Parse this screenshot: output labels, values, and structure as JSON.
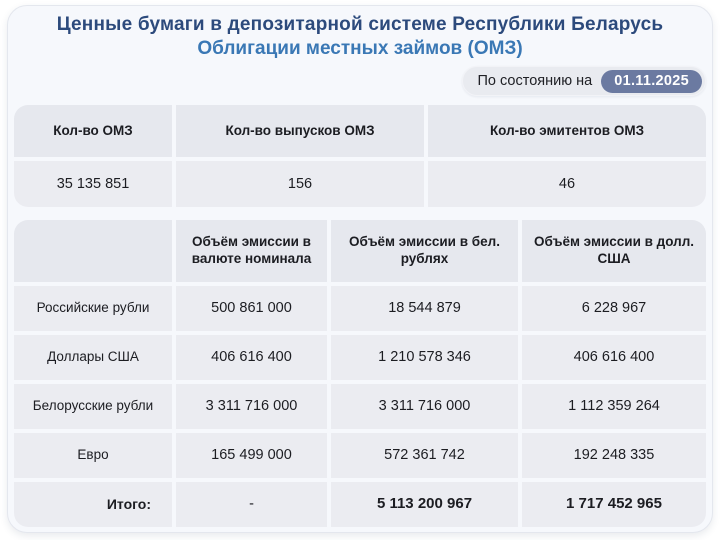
{
  "header": {
    "title": "Ценные бумаги в депозитарной системе Республики Беларусь",
    "subtitle": "Облигации местных займов (ОМЗ)",
    "as_of_label": "По состоянию на",
    "as_of_date": "01.11.2025"
  },
  "summary_table": {
    "columns": [
      "Кол-во ОМЗ",
      "Кол-во выпусков ОМЗ",
      "Кол-во эмитентов ОМЗ"
    ],
    "values": [
      "35 135 851",
      "156",
      "46"
    ]
  },
  "emission_table": {
    "columns": [
      "Объём эмиссии в валюте номинала",
      "Объём эмиссии в бел. рублях",
      "Объём эмиссии в долл. США"
    ],
    "rows": [
      {
        "label": "Российские рубли",
        "values": [
          "500 861 000",
          "18 544 879",
          "6 228 967"
        ]
      },
      {
        "label": "Доллары США",
        "values": [
          "406 616 400",
          "1 210 578 346",
          "406 616 400"
        ]
      },
      {
        "label": "Белорусские рубли",
        "values": [
          "3 311 716 000",
          "3 311 716 000",
          "1 112 359 264"
        ]
      },
      {
        "label": "Евро",
        "values": [
          "165 499 000",
          "572 361 742",
          "192 248 335"
        ]
      }
    ],
    "total_row": {
      "label": "Итого:",
      "values": [
        "-",
        "5 113 200 967",
        "1 717 452 965"
      ]
    }
  },
  "colors": {
    "title": "#2c4a7c",
    "subtitle": "#3a78b5",
    "date_pill": "#6b7aa1",
    "pill_bg": "#e9ebf0",
    "cell_bg": "#ebecf1",
    "header_cell_bg": "#e6e8ee",
    "card_bg": "#f6f8fc"
  }
}
